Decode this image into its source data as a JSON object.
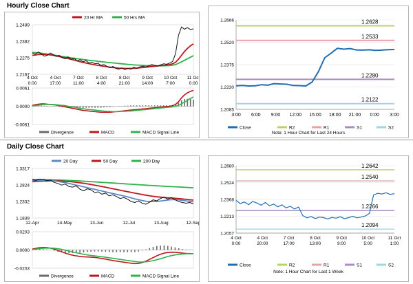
{
  "sections": {
    "hourly_title": "Hourly Close Chart",
    "daily_title": "Daily Close Chart"
  },
  "colors": {
    "ma_short": "#c0161b",
    "ma_long": "#2db34a",
    "ma_200": "#2db34a",
    "ma_20": "#5a88c6",
    "price": "#111111",
    "close": "#1f6db3",
    "r2": "#b6d26b",
    "r1": "#e7a3a3",
    "s1": "#a88bc7",
    "s2": "#9fd5e7",
    "grid": "#bfbfbf",
    "divergence": "#6a6a6a"
  },
  "chart_data": [
    {
      "id": "hourly-price",
      "type": "line",
      "legend": [
        "20 Hr MA",
        "50 Hrs MA"
      ],
      "yticks": [
        "1.2489",
        "1.2382",
        "1.2275",
        "1.2167"
      ],
      "ylim": [
        1.2167,
        1.2489
      ],
      "xticks": [
        [
          "4 Oct",
          "0:00"
        ],
        [
          "4 Oct",
          "17:00"
        ],
        [
          "7 Oct",
          "11:00"
        ],
        [
          "8 Oct",
          "4:00"
        ],
        [
          "8 Oct",
          "21:00"
        ],
        [
          "9 Oct",
          "14:00"
        ],
        [
          "10 Oct",
          "7:00"
        ],
        [
          "11 Oct",
          "0:00"
        ]
      ],
      "series": [
        {
          "name": "Price",
          "color": "price",
          "values": [
            1.2305,
            1.2298,
            1.2312,
            1.23,
            1.2285,
            1.229,
            1.2305,
            1.2296,
            1.2283,
            1.229,
            1.2275,
            1.2268,
            1.228,
            1.2265,
            1.227,
            1.2255,
            1.2262,
            1.2248,
            1.2255,
            1.224,
            1.2246,
            1.2235,
            1.2238,
            1.2225,
            1.223,
            1.2218,
            1.221,
            1.2218,
            1.2205,
            1.22,
            1.2208,
            1.2198,
            1.2205,
            1.22,
            1.2212,
            1.2205,
            1.2215,
            1.222,
            1.2215,
            1.2222,
            1.223,
            1.2225,
            1.222,
            1.2228,
            1.2235,
            1.2232,
            1.224,
            1.225,
            1.23,
            1.242,
            1.2475,
            1.246,
            1.247,
            1.2458,
            1.2462
          ]
        },
        {
          "name": "20 Hr MA",
          "color": "ma_short",
          "values": [
            1.229,
            1.2292,
            1.2295,
            1.2296,
            1.2296,
            1.2295,
            1.2293,
            1.229,
            1.2286,
            1.2282,
            1.2278,
            1.2273,
            1.2269,
            1.2264,
            1.2259,
            1.2254,
            1.2249,
            1.2244,
            1.224,
            1.2236,
            1.2232,
            1.2228,
            1.2225,
            1.2222,
            1.2219,
            1.2216,
            1.2213,
            1.2211,
            1.2209,
            1.2207,
            1.2206,
            1.2205,
            1.2205,
            1.2205,
            1.2206,
            1.2207,
            1.2209,
            1.2211,
            1.2213,
            1.2215,
            1.2217,
            1.2219,
            1.2221,
            1.2223,
            1.2225,
            1.2227,
            1.223,
            1.2235,
            1.2245,
            1.2265,
            1.229,
            1.2315,
            1.2335,
            1.2352,
            1.2365
          ]
        },
        {
          "name": "50 Hrs MA",
          "color": "ma_long",
          "values": [
            1.231,
            1.2308,
            1.2306,
            1.2304,
            1.2301,
            1.2298,
            1.2295,
            1.2292,
            1.2289,
            1.2286,
            1.2283,
            1.228,
            1.2277,
            1.2274,
            1.2271,
            1.2268,
            1.2266,
            1.2263,
            1.2261,
            1.2258,
            1.2256,
            1.2254,
            1.2251,
            1.2249,
            1.2247,
            1.2245,
            1.2243,
            1.2241,
            1.2239,
            1.2237,
            1.2235,
            1.2233,
            1.2231,
            1.223,
            1.2228,
            1.2227,
            1.2226,
            1.2225,
            1.2224,
            1.2223,
            1.2223,
            1.2222,
            1.2222,
            1.2222,
            1.2222,
            1.2223,
            1.2224,
            1.2226,
            1.223,
            1.2238,
            1.2248,
            1.2258,
            1.2268,
            1.2278,
            1.2288
          ]
        }
      ]
    },
    {
      "id": "hourly-macd",
      "type": "line",
      "legend": [
        "Divergence",
        "MACD",
        "MACD Signal Line"
      ],
      "yticks": [
        "0.0061",
        "0.0000",
        "-0.0061"
      ],
      "ylim": [
        -0.0061,
        0.0061
      ],
      "series": [
        {
          "name": "MACD",
          "color": "ma_short",
          "values": [
            0.0003,
            0.0005,
            0.0007,
            0.0008,
            0.0008,
            0.0007,
            0.0006,
            0.0005,
            0.0004,
            0.0002,
            0.0,
            -0.0002,
            -0.0004,
            -0.0006,
            -0.0008,
            -0.001,
            -0.0012,
            -0.0014,
            -0.0015,
            -0.0016,
            -0.0017,
            -0.0018,
            -0.0019,
            -0.002,
            -0.002,
            -0.002,
            -0.002,
            -0.0019,
            -0.0018,
            -0.0017,
            -0.0016,
            -0.0015,
            -0.0014,
            -0.0013,
            -0.0012,
            -0.0011,
            -0.001,
            -0.0009,
            -0.0008,
            -0.0007,
            -0.0006,
            -0.0005,
            -0.0004,
            -0.0003,
            -0.0002,
            -0.0001,
            0.0,
            0.0002,
            0.0006,
            0.0015,
            0.0028,
            0.0038,
            0.0045,
            0.005,
            0.0053
          ]
        },
        {
          "name": "MACD Signal Line",
          "color": "ma_long",
          "values": [
            0.0001,
            0.0002,
            0.0004,
            0.0005,
            0.0006,
            0.0006,
            0.0006,
            0.0006,
            0.0005,
            0.0004,
            0.0003,
            0.0002,
            0.0,
            -0.0002,
            -0.0003,
            -0.0005,
            -0.0007,
            -0.0008,
            -0.001,
            -0.0011,
            -0.0012,
            -0.0013,
            -0.0014,
            -0.0015,
            -0.0016,
            -0.0017,
            -0.0017,
            -0.0018,
            -0.0018,
            -0.0018,
            -0.0017,
            -0.0017,
            -0.0016,
            -0.0016,
            -0.0015,
            -0.0014,
            -0.0013,
            -0.0012,
            -0.0011,
            -0.001,
            -0.0009,
            -0.0008,
            -0.0007,
            -0.0006,
            -0.0005,
            -0.0004,
            -0.0003,
            -0.0002,
            0.0,
            0.0003,
            0.0008,
            0.0014,
            0.002,
            0.0026,
            0.0031
          ]
        }
      ]
    },
    {
      "id": "hourly-pivot",
      "type": "line",
      "yticks": [
        "1.2666",
        "1.2520",
        "1.2375",
        "1.2230",
        "1.2085"
      ],
      "ylim": [
        1.2085,
        1.2666
      ],
      "xticks": [
        "3:00",
        "6:00",
        "9:00",
        "12:00",
        "15:00",
        "18:00",
        "21:00",
        "0:00",
        "3:00"
      ],
      "legend": [
        "Close",
        "R2",
        "R1",
        "S1",
        "S2"
      ],
      "note": "Note: 1 Hour Chart for Last 24 Hours",
      "levels": [
        {
          "name": "R2",
          "value": 1.2628,
          "label": "1.2628",
          "color": "r2"
        },
        {
          "name": "R1",
          "value": 1.2533,
          "label": "1.2533",
          "color": "r1"
        },
        {
          "name": "S1",
          "value": 1.228,
          "label": "1.2280",
          "color": "s1"
        },
        {
          "name": "S2",
          "value": 1.2122,
          "label": "1.2122",
          "color": "s2"
        }
      ],
      "series": [
        {
          "name": "Close",
          "color": "close",
          "values": [
            1.2238,
            1.224,
            1.2237,
            1.2238,
            1.2245,
            1.2242,
            1.2252,
            1.225,
            1.2248,
            1.224,
            1.2239,
            1.2237,
            1.2262,
            1.233,
            1.242,
            1.245,
            1.2482,
            1.2476,
            1.248,
            1.2471,
            1.247,
            1.2472,
            1.2468,
            1.247,
            1.2473,
            1.2474
          ]
        }
      ]
    },
    {
      "id": "daily-price",
      "type": "line",
      "legend": [
        "20 Day",
        "50 Day",
        "200 Day"
      ],
      "yticks": [
        "1.3317",
        "1.2824",
        "1.2332",
        "1.1839"
      ],
      "ylim": [
        1.1839,
        1.3317
      ],
      "xticks": [
        "12-Apr",
        "14-May",
        "13-Jun",
        "12-Jul",
        "13-Aug",
        "12-Sep"
      ],
      "series": [
        {
          "name": "Price",
          "color": "price",
          "values": [
            1.298,
            1.296,
            1.3,
            1.299,
            1.295,
            1.297,
            1.29,
            1.287,
            1.282,
            1.285,
            1.278,
            1.276,
            1.28,
            1.27,
            1.265,
            1.271,
            1.268,
            1.26,
            1.262,
            1.255,
            1.258,
            1.25,
            1.253,
            1.248,
            1.242,
            1.245,
            1.24,
            1.233,
            1.23,
            1.235,
            1.228,
            1.225,
            1.231,
            1.238,
            1.235,
            1.242,
            1.246,
            1.24,
            1.245,
            1.238,
            1.233,
            1.23,
            1.228,
            1.23,
            1.226
          ]
        },
        {
          "name": "20 Day",
          "color": "ma_20",
          "values": [
            1.295,
            1.2955,
            1.296,
            1.2962,
            1.296,
            1.2955,
            1.2945,
            1.293,
            1.291,
            1.289,
            1.287,
            1.2845,
            1.282,
            1.2795,
            1.277,
            1.2745,
            1.272,
            1.2695,
            1.267,
            1.2645,
            1.262,
            1.2595,
            1.257,
            1.2545,
            1.252,
            1.2495,
            1.247,
            1.244,
            1.241,
            1.2385,
            1.236,
            1.234,
            1.233,
            1.233,
            1.2335,
            1.2345,
            1.236,
            1.2375,
            1.2385,
            1.2385,
            1.2378,
            1.2365,
            1.235,
            1.2335,
            1.232
          ]
        },
        {
          "name": "50 Day",
          "color": "ma_short",
          "values": [
            1.292,
            1.2928,
            1.2935,
            1.294,
            1.2944,
            1.2946,
            1.2946,
            1.2944,
            1.294,
            1.2934,
            1.2926,
            1.2916,
            1.2904,
            1.289,
            1.2875,
            1.2858,
            1.284,
            1.282,
            1.28,
            1.2778,
            1.2756,
            1.2734,
            1.2712,
            1.269,
            1.2668,
            1.2646,
            1.2624,
            1.2602,
            1.258,
            1.256,
            1.254,
            1.252,
            1.2502,
            1.2486,
            1.2472,
            1.246,
            1.245,
            1.2442,
            1.2434,
            1.2426,
            1.2418,
            1.2408,
            1.2396,
            1.2384,
            1.2372
          ]
        },
        {
          "name": "200 Day",
          "color": "ma_200",
          "values": [
            1.299,
            1.299,
            1.2988,
            1.2986,
            1.2984,
            1.2981,
            1.2978,
            1.2974,
            1.297,
            1.2965,
            1.296,
            1.2955,
            1.2949,
            1.2943,
            1.2937,
            1.2931,
            1.2924,
            1.2917,
            1.291,
            1.2903,
            1.2896,
            1.2889,
            1.2882,
            1.2875,
            1.2868,
            1.2861,
            1.2854,
            1.2847,
            1.284,
            1.2833,
            1.2826,
            1.2819,
            1.2812,
            1.2806,
            1.28,
            1.2794,
            1.2788,
            1.2782,
            1.2776,
            1.277,
            1.2764,
            1.2758,
            1.2752,
            1.2746,
            1.274
          ]
        }
      ]
    },
    {
      "id": "daily-macd",
      "type": "line",
      "legend": [
        "Divergence",
        "MACD",
        "MACD Signal Line"
      ],
      "yticks": [
        "0.0203",
        "0.0000",
        "-0.0203"
      ],
      "ylim": [
        -0.0203,
        0.0203
      ],
      "series": [
        {
          "name": "MACD",
          "color": "ma_short",
          "values": [
            0.001,
            0.0018,
            0.0025,
            0.0028,
            0.0026,
            0.002,
            0.001,
            -0.0005,
            -0.002,
            -0.0035,
            -0.0048,
            -0.0058,
            -0.0066,
            -0.0072,
            -0.0076,
            -0.0078,
            -0.008,
            -0.0083,
            -0.0088,
            -0.0095,
            -0.0102,
            -0.011,
            -0.0118,
            -0.0124,
            -0.013,
            -0.0136,
            -0.0142,
            -0.0148,
            -0.0152,
            -0.015,
            -0.014,
            -0.0125,
            -0.0105,
            -0.0085,
            -0.0065,
            -0.0048,
            -0.0035,
            -0.0028,
            -0.0025,
            -0.0026,
            -0.003,
            -0.0035,
            -0.0038,
            -0.004,
            -0.0042
          ]
        },
        {
          "name": "MACD Signal Line",
          "color": "ma_long",
          "values": [
            0.0005,
            0.001,
            0.0015,
            0.0019,
            0.0021,
            0.0021,
            0.0019,
            0.0014,
            0.0007,
            -0.0002,
            -0.0012,
            -0.0022,
            -0.0031,
            -0.004,
            -0.0048,
            -0.0055,
            -0.0061,
            -0.0066,
            -0.0071,
            -0.0076,
            -0.0081,
            -0.0087,
            -0.0093,
            -0.0099,
            -0.0105,
            -0.0111,
            -0.0117,
            -0.0123,
            -0.0129,
            -0.0133,
            -0.0134,
            -0.0132,
            -0.0127,
            -0.0119,
            -0.0109,
            -0.0097,
            -0.0085,
            -0.0073,
            -0.0063,
            -0.0055,
            -0.0049,
            -0.0045,
            -0.0043,
            -0.0042,
            -0.0042
          ]
        }
      ]
    },
    {
      "id": "daily-pivot",
      "type": "line",
      "yticks": [
        "1.2680",
        "1.2524",
        "1.2368",
        "1.2213",
        "1.2057"
      ],
      "ylim": [
        1.2057,
        1.268
      ],
      "xticks": [
        [
          "4 Oct",
          "0:00"
        ],
        [
          "4 Oct",
          "20:00"
        ],
        [
          "7 Oct",
          "17:00"
        ],
        [
          "8 Oct",
          "13:00"
        ],
        [
          "9 Oct",
          "9:00"
        ],
        [
          "10 Oct",
          "5:00"
        ],
        [
          "11 Oct",
          "1:00"
        ]
      ],
      "legend": [
        "Close",
        "R2",
        "R1",
        "S1",
        "S2"
      ],
      "note": "Note: 1 Hour Chart for Last 1 Week",
      "levels": [
        {
          "name": "R2",
          "value": 1.2642,
          "label": "1.2642",
          "color": "r2"
        },
        {
          "name": "R1",
          "value": 1.254,
          "label": "1.2540",
          "color": "r1"
        },
        {
          "name": "S1",
          "value": 1.2266,
          "label": "1.2266",
          "color": "s1"
        },
        {
          "name": "S2",
          "value": 1.2094,
          "label": "1.2094",
          "color": "s2"
        }
      ],
      "series": [
        {
          "name": "Close",
          "color": "close",
          "values": [
            1.236,
            1.233,
            1.2345,
            1.232,
            1.235,
            1.2335,
            1.2315,
            1.234,
            1.231,
            1.2325,
            1.23,
            1.2318,
            1.229,
            1.2305,
            1.228,
            1.2298,
            1.222,
            1.2198,
            1.221,
            1.2192,
            1.2205,
            1.22,
            1.2188,
            1.2202,
            1.2195,
            1.2208,
            1.219,
            1.22,
            1.2212,
            1.2198,
            1.2205,
            1.2215,
            1.224,
            1.241,
            1.2425,
            1.2418,
            1.243,
            1.2415,
            1.2422
          ]
        }
      ]
    }
  ]
}
